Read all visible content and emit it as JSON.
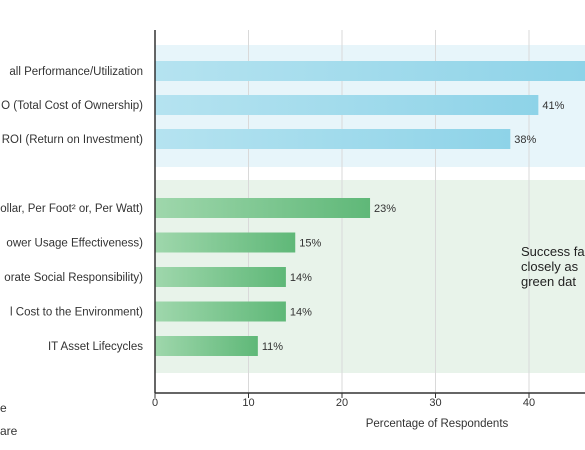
{
  "chart_data": {
    "type": "bar",
    "orientation": "horizontal",
    "xlabel": "Percentage of Respondents",
    "xlim": [
      0,
      45
    ],
    "xticks": [
      0,
      10,
      20,
      30,
      40
    ],
    "grid": true,
    "groups": [
      {
        "name": "blue-group",
        "background_color": "#e7f5fa",
        "bar_color_start": "#b5e3f0",
        "bar_color_end": "#8ed3e8",
        "categories": [
          "all Performance/Utilization",
          "O (Total Cost of Ownership)",
          "ROI (Return on Investment)"
        ],
        "values": [
          46,
          41,
          38
        ],
        "value_labels": [
          "",
          "41%",
          "38%"
        ]
      },
      {
        "name": "green-group",
        "background_color": "#e8f3ea",
        "bar_color_start": "#9fd7ac",
        "bar_color_end": "#5fb878",
        "categories": [
          "ollar, Per Foot² or, Per Watt)",
          "ower Usage Effectiveness)",
          "orate Social Responsibility)",
          "l Cost to the Environment)",
          "IT Asset Lifecycles"
        ],
        "values": [
          23,
          15,
          14,
          14,
          11
        ],
        "value_labels": [
          "23%",
          "15%",
          "14%",
          "14%",
          "11%"
        ]
      }
    ],
    "annotation_lines": [
      "Success fa",
      "closely as",
      "green dat"
    ]
  },
  "legend_fragments": [
    "e",
    "are"
  ]
}
